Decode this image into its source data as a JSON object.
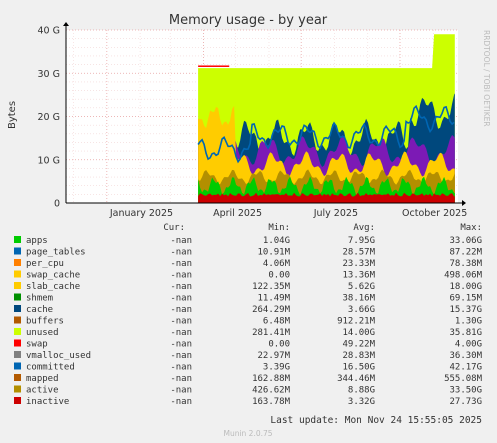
{
  "chart_data": {
    "type": "area",
    "title": "Memory usage - by year",
    "ylabel": "Bytes",
    "watermark": "RRDTOOL / TOBI OETIKER",
    "xlim": [
      "2024-11-24",
      "2025-11-24"
    ],
    "ylim": [
      0,
      40
    ],
    "y_unit": "G",
    "y_ticks": [
      {
        "value": 0,
        "label": "0"
      },
      {
        "value": 10,
        "label": "10 G"
      },
      {
        "value": 20,
        "label": "20 G"
      },
      {
        "value": 30,
        "label": "30 G"
      },
      {
        "value": 40,
        "label": "40 G"
      }
    ],
    "x_ticks": [
      {
        "date": "2025-01-01",
        "label": "January 2025"
      },
      {
        "date": "2025-04-01",
        "label": "April 2025"
      },
      {
        "date": "2025-07-01",
        "label": "July 2025"
      },
      {
        "date": "2025-10-01",
        "label": "October 2025"
      }
    ],
    "grid": true,
    "legend_header": {
      "cur": "Cur:",
      "min": "Min:",
      "avg": "Avg:",
      "max": "Max:"
    },
    "series": [
      {
        "name": "apps",
        "color": "#00cc00",
        "cur": "-nan",
        "min": "1.04G",
        "avg": "7.95G",
        "max": "33.06G"
      },
      {
        "name": "page_tables",
        "color": "#0066b3",
        "cur": "-nan",
        "min": "10.91M",
        "avg": "28.57M",
        "max": "87.22M"
      },
      {
        "name": "per_cpu",
        "color": "#ff8000",
        "cur": "-nan",
        "min": "4.06M",
        "avg": "23.33M",
        "max": "78.38M"
      },
      {
        "name": "swap_cache",
        "color": "#ffcc00",
        "cur": "-nan",
        "min": "0.00",
        "avg": "13.36M",
        "max": "498.06M"
      },
      {
        "name": "slab_cache",
        "color": "#ffcc00",
        "cur": "-nan",
        "min": "122.35M",
        "avg": "5.62G",
        "max": "18.00G"
      },
      {
        "name": "shmem",
        "color": "#008f00",
        "cur": "-nan",
        "min": "11.49M",
        "avg": "38.16M",
        "max": "69.15M"
      },
      {
        "name": "cache",
        "color": "#00487d",
        "cur": "-nan",
        "min": "264.29M",
        "avg": "3.66G",
        "max": "15.37G"
      },
      {
        "name": "buffers",
        "color": "#b35a00",
        "cur": "-nan",
        "min": "6.48M",
        "avg": "912.21M",
        "max": "1.30G"
      },
      {
        "name": "unused",
        "color": "#ccff00",
        "cur": "-nan",
        "min": "281.41M",
        "avg": "14.00G",
        "max": "35.81G"
      },
      {
        "name": "swap",
        "color": "#ff0000",
        "cur": "-nan",
        "min": "0.00",
        "avg": "49.22M",
        "max": "4.00G"
      },
      {
        "name": "vmalloc_used",
        "color": "#808080",
        "cur": "-nan",
        "min": "22.97M",
        "avg": "28.83M",
        "max": "36.30M"
      },
      {
        "name": "committed",
        "color": "#0066b3",
        "cur": "-nan",
        "min": "3.39G",
        "avg": "16.50G",
        "max": "42.17G"
      },
      {
        "name": "mapped",
        "color": "#b35a00",
        "cur": "-nan",
        "min": "162.88M",
        "avg": "344.46M",
        "max": "555.08M"
      },
      {
        "name": "active",
        "color": "#b38f00",
        "cur": "-nan",
        "min": "426.62M",
        "avg": "8.88G",
        "max": "33.50G"
      },
      {
        "name": "inactive",
        "color": "#cc0000",
        "cur": "-nan",
        "min": "163.78M",
        "avg": "3.32G",
        "max": "27.73G"
      }
    ],
    "last_update": "Last update: Mon Nov 24 15:55:05 2025",
    "footer": "Munin 2.0.75"
  }
}
